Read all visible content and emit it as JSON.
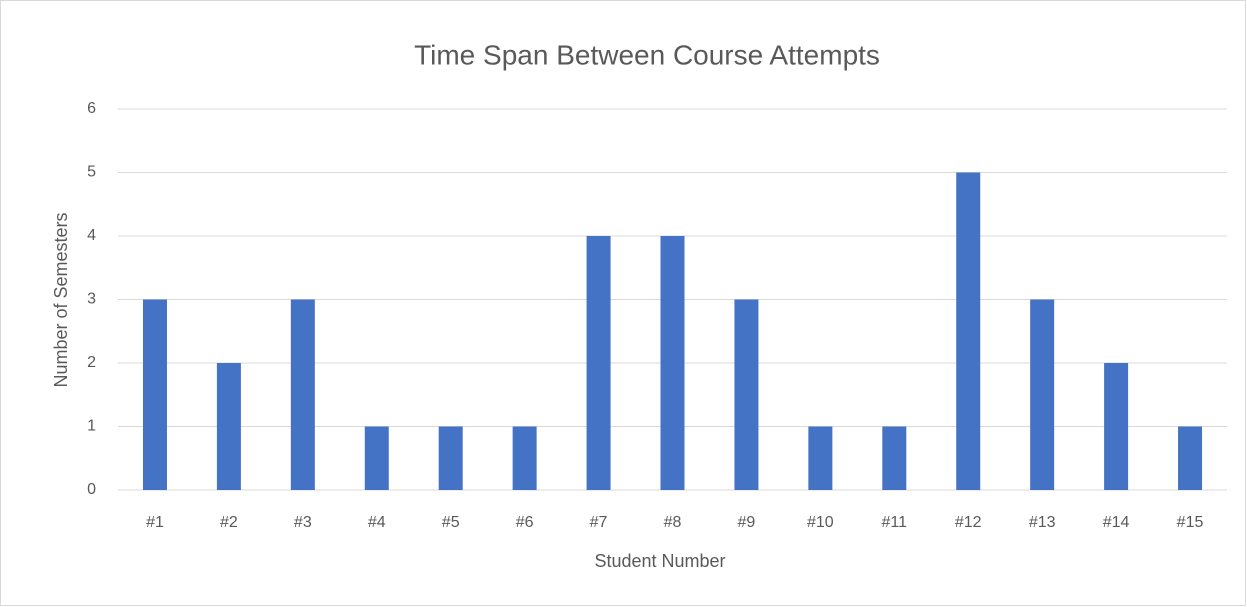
{
  "chart_data": {
    "type": "bar",
    "title": "Time Span Between Course Attempts",
    "x_label": "Student Number",
    "y_label": "Number of Semesters",
    "categories": [
      "#1",
      "#2",
      "#3",
      "#4",
      "#5",
      "#6",
      "#7",
      "#8",
      "#9",
      "#10",
      "#11",
      "#12",
      "#13",
      "#14",
      "#15"
    ],
    "values": [
      3,
      2,
      3,
      1,
      1,
      1,
      4,
      4,
      3,
      1,
      1,
      5,
      3,
      2,
      1
    ],
    "color": "#4472c4",
    "ylim": [
      0,
      6
    ],
    "yticks": [
      0,
      1,
      2,
      3,
      4,
      5,
      6
    ],
    "grid": true
  }
}
